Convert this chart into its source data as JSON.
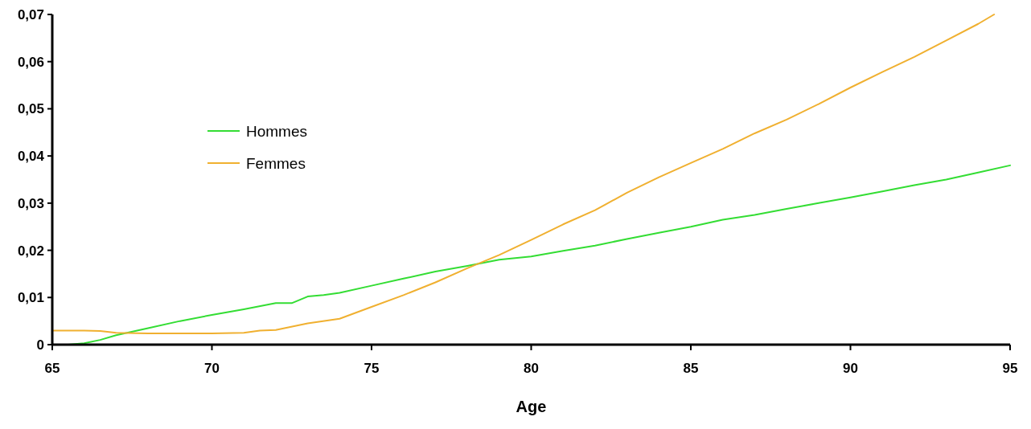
{
  "chart_data": {
    "type": "line",
    "xlabel": "Age",
    "xlim": [
      65,
      95
    ],
    "xticks": [
      65,
      70,
      75,
      80,
      85,
      90,
      95
    ],
    "ylim": [
      0,
      0.07
    ],
    "yticks": [
      0,
      {
        "value": 0.01,
        "label": "0,01"
      },
      {
        "value": 0.02,
        "label": "0,02"
      },
      {
        "value": 0.03,
        "label": "0,03"
      },
      {
        "value": 0.04,
        "label": "0,04"
      },
      {
        "value": 0.05,
        "label": "0,05"
      },
      {
        "value": 0.06,
        "label": "0,06"
      },
      {
        "value": 0.07,
        "label": "0,07"
      }
    ],
    "grid": false,
    "legend": "left",
    "marker": "none",
    "line_style": "solid",
    "series": [
      {
        "name": "Hommes",
        "color": "#33dd33",
        "x": [
          65.5,
          66,
          66.5,
          67,
          68,
          69,
          70,
          71,
          72,
          72.5,
          73,
          73.5,
          74,
          75,
          76,
          77,
          78,
          79,
          80,
          81,
          82,
          83,
          84,
          85,
          86,
          87,
          88,
          89,
          90,
          91,
          92,
          93,
          94,
          95
        ],
        "values": [
          0,
          0.0003,
          0.001,
          0.002,
          0.0035,
          0.005,
          0.0063,
          0.0075,
          0.0088,
          0.0088,
          0.0102,
          0.0105,
          0.011,
          0.0125,
          0.014,
          0.0155,
          0.0167,
          0.018,
          0.0187,
          0.0199,
          0.021,
          0.0224,
          0.0237,
          0.025,
          0.0265,
          0.0275,
          0.0288,
          0.03,
          0.0312,
          0.0325,
          0.0338,
          0.035,
          0.0365,
          0.038
        ]
      },
      {
        "name": "Femmes",
        "color": "#f0b030",
        "x": [
          65,
          66,
          66.5,
          67,
          68,
          69,
          70,
          71,
          71.5,
          72,
          73,
          74,
          75,
          76,
          77,
          78,
          79,
          80,
          81,
          82,
          83,
          84,
          85,
          86,
          87,
          88,
          89,
          90,
          91,
          92,
          93,
          94,
          94.5
        ],
        "values": [
          0.003,
          0.003,
          0.0029,
          0.0025,
          0.0024,
          0.0024,
          0.0024,
          0.0025,
          0.003,
          0.0031,
          0.0045,
          0.0055,
          0.008,
          0.0105,
          0.0132,
          0.0162,
          0.019,
          0.0222,
          0.0255,
          0.0285,
          0.0322,
          0.0355,
          0.0385,
          0.0415,
          0.0448,
          0.0477,
          0.051,
          0.0545,
          0.0578,
          0.061,
          0.0645,
          0.068,
          0.07
        ]
      }
    ]
  }
}
